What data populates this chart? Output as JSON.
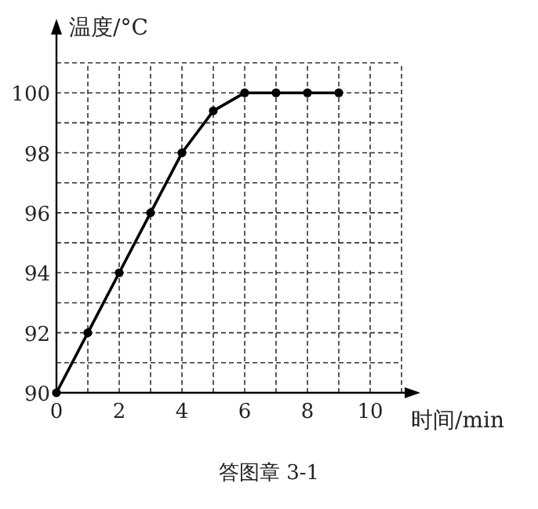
{
  "chart_data": {
    "type": "line",
    "xlabel": "时间/min",
    "ylabel": "温度/°C",
    "annotations": [
      "答图章 3-1"
    ],
    "x": [
      0,
      1,
      2,
      3,
      4,
      5,
      6,
      7,
      8,
      9
    ],
    "series": [
      {
        "color": "#000000",
        "values": [
          90,
          92,
          94,
          96,
          98,
          99.4,
          100,
          100,
          100,
          100
        ]
      }
    ],
    "xlim": [
      0,
      11
    ],
    "ylim": [
      90,
      101
    ],
    "xticks": [
      0,
      {
        "value": 1,
        "label": null
      },
      2,
      {
        "value": 3,
        "label": null
      },
      4,
      {
        "value": 5,
        "label": null
      },
      6,
      {
        "value": 7,
        "label": null
      },
      8,
      {
        "value": 9,
        "label": null
      },
      10,
      {
        "value": 11,
        "label": null
      }
    ],
    "yticks": [
      90,
      {
        "value": 91,
        "label": null
      },
      92,
      {
        "value": 93,
        "label": null
      },
      94,
      {
        "value": 95,
        "label": null
      },
      96,
      {
        "value": 97,
        "label": null
      },
      98,
      {
        "value": 99,
        "label": null
      },
      100,
      {
        "value": 101,
        "label": null
      }
    ],
    "grid": true,
    "marker": "circle",
    "line_style": "solid"
  }
}
